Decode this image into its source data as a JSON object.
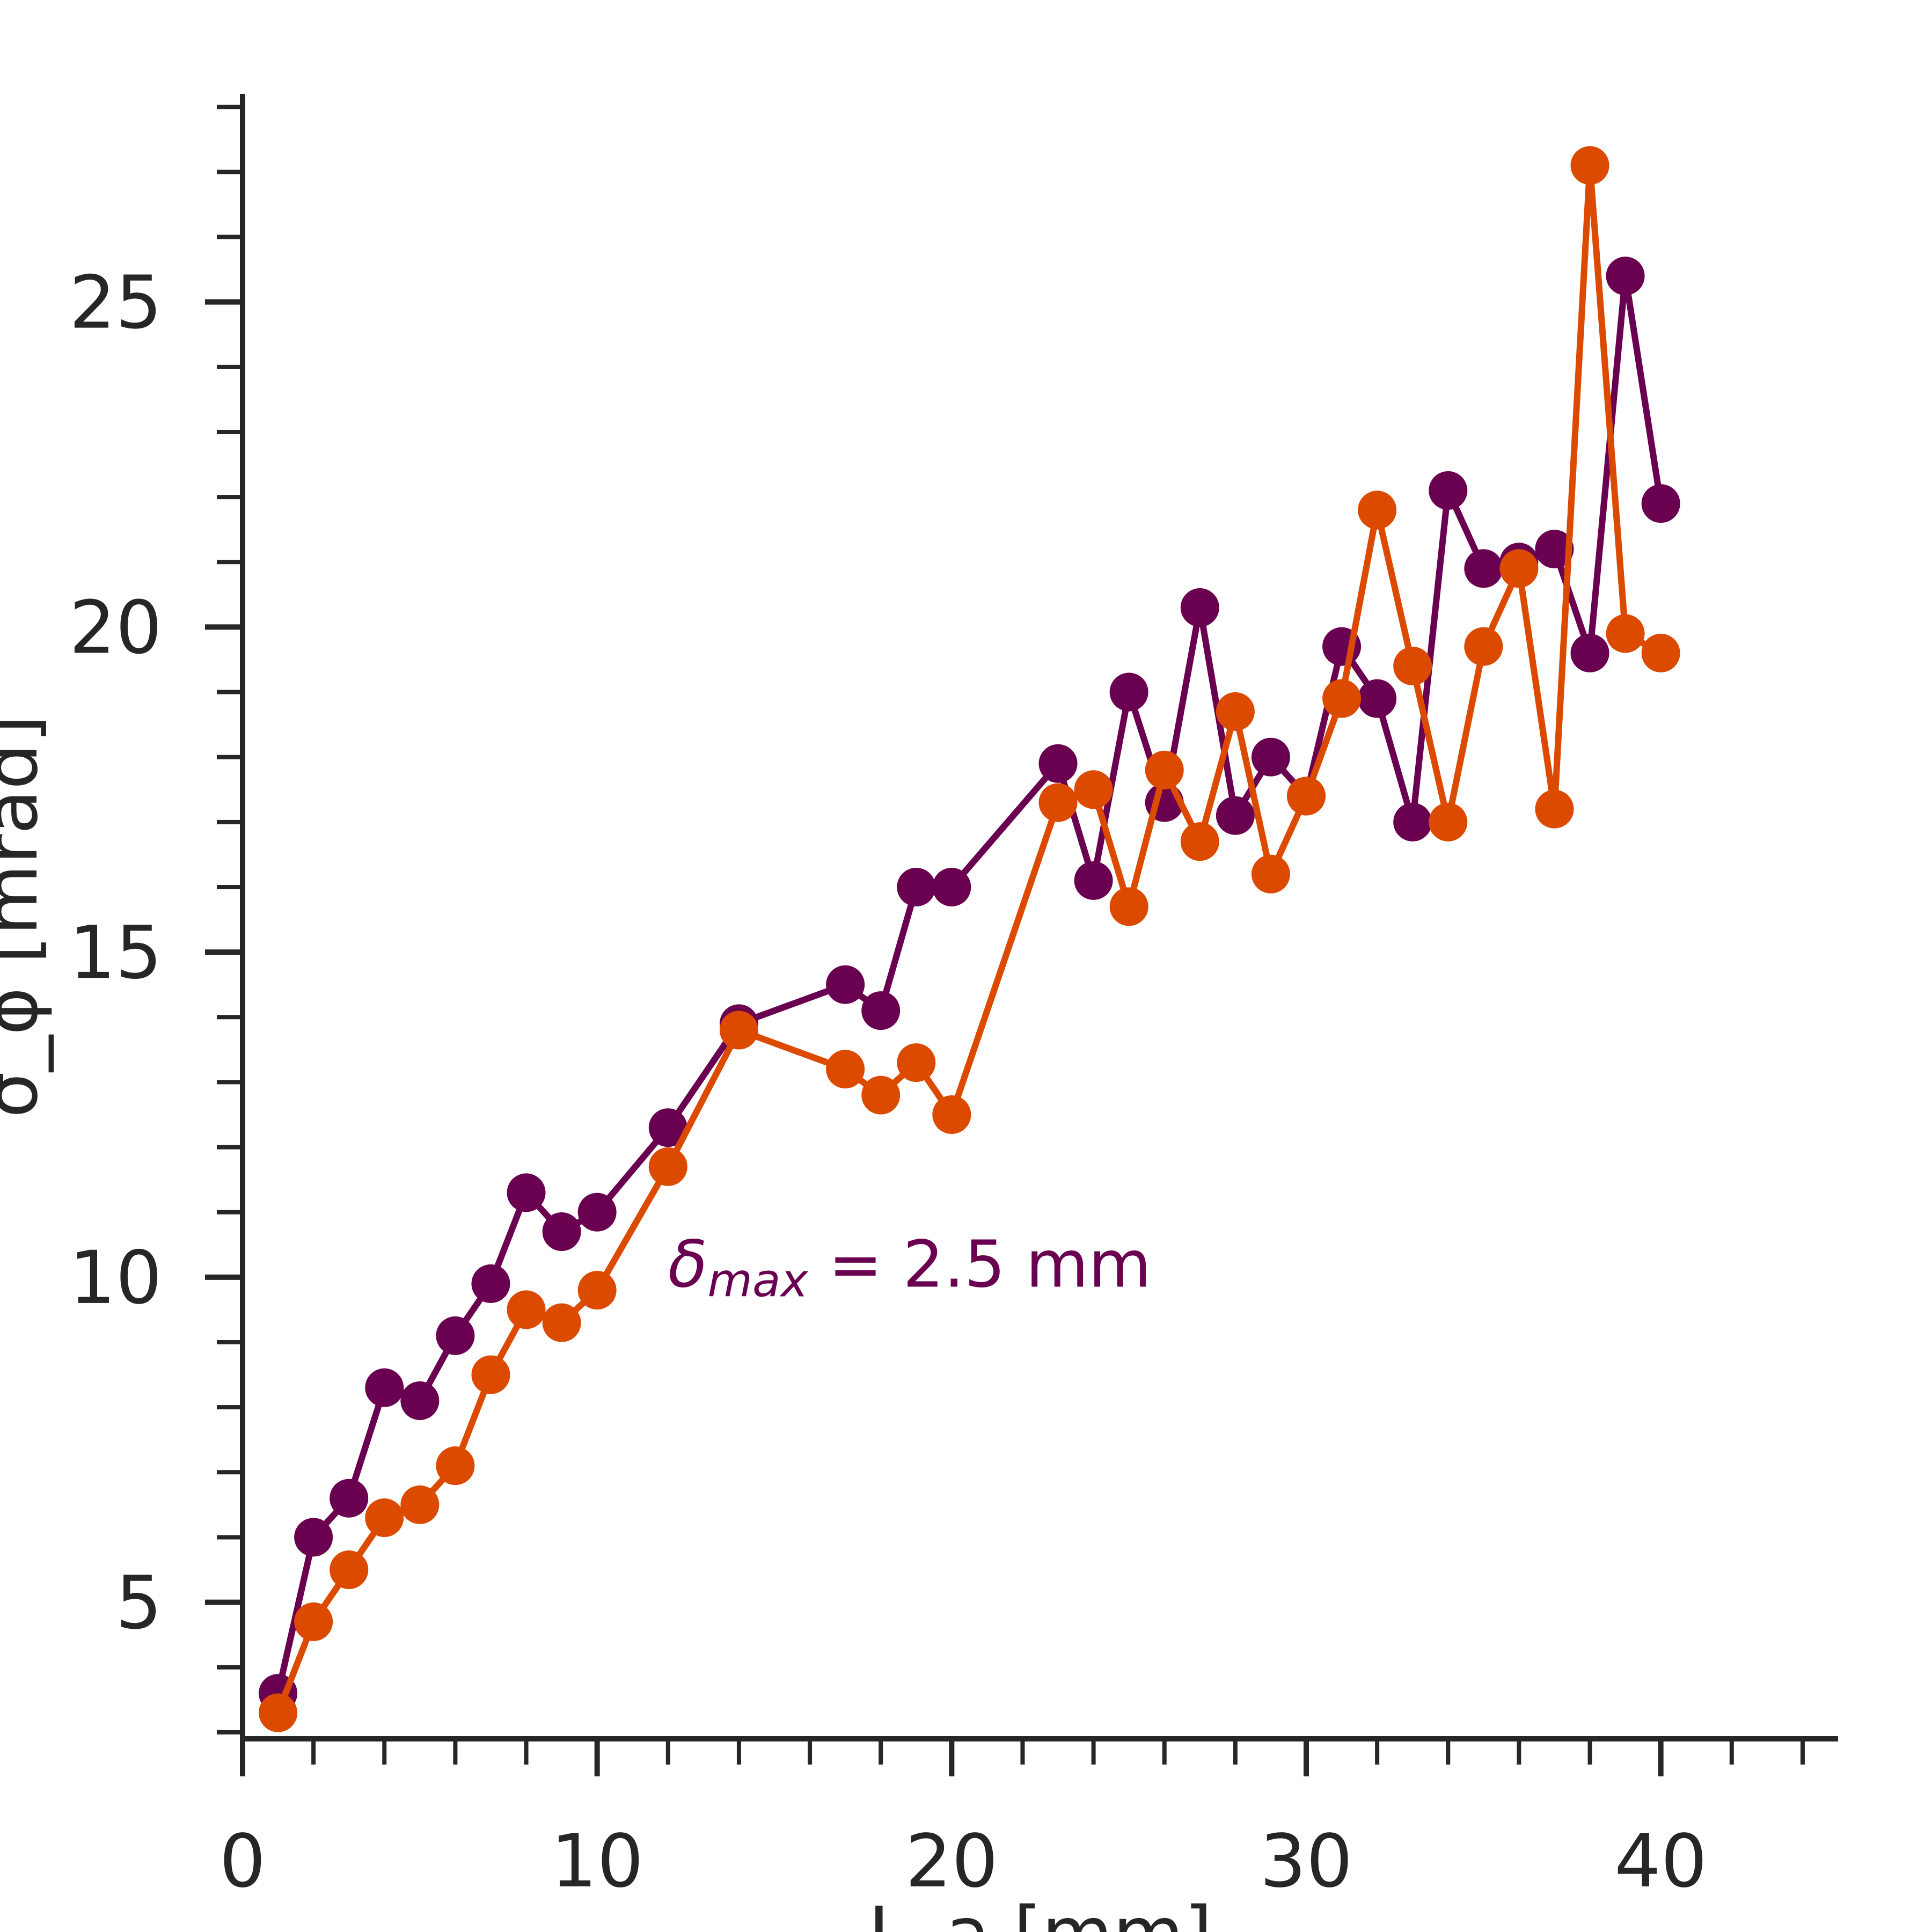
{
  "chart_data": {
    "type": "line",
    "xlabel": "L_a [mm]",
    "ylabel": "σ_ϕ [mrad]",
    "xlim": [
      0,
      45
    ],
    "ylim": [
      2.9,
      28.2
    ],
    "xticks": [
      0,
      10,
      20,
      30,
      40
    ],
    "yticks": [
      5,
      10,
      15,
      20,
      25
    ],
    "grid": false,
    "colors": {
      "series_1": "#6a0050",
      "series_2": "#dc4a00",
      "axis": "#262626"
    },
    "annotation": {
      "symbol": "δ",
      "subscript": "max",
      "rest": " = 2.5 mm",
      "color": "#6a0050",
      "x": 12,
      "y": 10.2
    },
    "series": [
      {
        "x": [
          1,
          2,
          3,
          4,
          5,
          6,
          7,
          8,
          9,
          10,
          12,
          14,
          17,
          18,
          19,
          20,
          23,
          24,
          25,
          26,
          27,
          28,
          29,
          30,
          31,
          32,
          33,
          34,
          35,
          36,
          37,
          38,
          39,
          40
        ],
        "values": [
          3.6,
          6.0,
          6.6,
          8.3,
          8.1,
          9.1,
          9.9,
          11.3,
          10.7,
          11.0,
          12.3,
          13.9,
          14.5,
          14.1,
          16.0,
          16.0,
          17.9,
          16.1,
          19.0,
          17.3,
          20.3,
          17.1,
          18.0,
          17.4,
          19.7,
          18.9,
          17.0,
          22.1,
          20.9,
          21.0,
          21.2,
          19.6,
          25.4,
          21.9
        ]
      },
      {
        "x": [
          1,
          2,
          3,
          4,
          5,
          6,
          7,
          8,
          9,
          10,
          12,
          14,
          17,
          18,
          19,
          20,
          23,
          24,
          25,
          26,
          27,
          28,
          29,
          30,
          31,
          32,
          33,
          34,
          35,
          36,
          37,
          38,
          39,
          40
        ],
        "values": [
          3.3,
          4.7,
          5.5,
          6.3,
          6.5,
          7.1,
          8.5,
          9.5,
          9.3,
          9.8,
          11.7,
          13.8,
          13.2,
          12.8,
          13.3,
          12.5,
          17.3,
          17.5,
          15.7,
          17.8,
          16.7,
          18.7,
          16.2,
          17.4,
          18.9,
          21.8,
          19.4,
          17.0,
          19.7,
          20.9,
          17.2,
          27.1,
          19.9,
          19.6
        ]
      }
    ]
  }
}
